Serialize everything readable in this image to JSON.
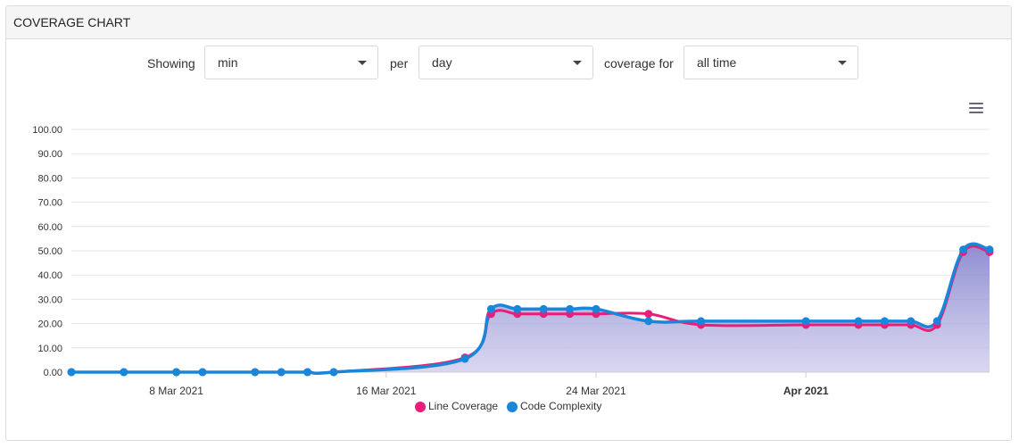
{
  "panel": {
    "title": "COVERAGE CHART"
  },
  "controls": {
    "showing_label": "Showing",
    "showing_value": "min",
    "per_label": "per",
    "per_value": "day",
    "coverage_label": "coverage for",
    "coverage_value": "all time"
  },
  "icons": {
    "menu": "hamburger-menu-icon",
    "dropdown": "caret-down-icon"
  },
  "chart_data": {
    "type": "area",
    "title": "",
    "xlabel": "",
    "ylabel": "",
    "ylim": [
      0,
      100
    ],
    "yticks": [
      "0.00",
      "10.00",
      "20.00",
      "30.00",
      "40.00",
      "50.00",
      "60.00",
      "70.00",
      "80.00",
      "90.00",
      "100.00"
    ],
    "xticks": [
      {
        "date": "2021-03-08",
        "label": "8 Mar 2021",
        "bold": false
      },
      {
        "date": "2021-03-16",
        "label": "16 Mar 2021",
        "bold": false
      },
      {
        "date": "2021-03-24",
        "label": "24 Mar 2021",
        "bold": false
      },
      {
        "date": "2021-04-01",
        "label": "Apr 2021",
        "bold": true
      }
    ],
    "xrange": [
      "2021-03-04",
      "2021-04-08"
    ],
    "grid": true,
    "legend_position": "bottom-center",
    "series": [
      {
        "name": "Line Coverage",
        "color": "#e91e78",
        "points": [
          [
            "2021-03-04",
            0
          ],
          [
            "2021-03-06",
            0
          ],
          [
            "2021-03-08",
            0
          ],
          [
            "2021-03-09",
            0
          ],
          [
            "2021-03-11",
            0
          ],
          [
            "2021-03-12",
            0
          ],
          [
            "2021-03-13",
            0
          ],
          [
            "2021-03-14",
            0
          ],
          [
            "2021-03-19",
            6
          ],
          [
            "2021-03-20",
            24
          ],
          [
            "2021-03-21",
            24
          ],
          [
            "2021-03-22",
            24
          ],
          [
            "2021-03-23",
            24
          ],
          [
            "2021-03-24",
            24
          ],
          [
            "2021-03-26",
            24
          ],
          [
            "2021-03-28",
            19.5
          ],
          [
            "2021-04-01",
            19.5
          ],
          [
            "2021-04-03",
            19.5
          ],
          [
            "2021-04-04",
            19.5
          ],
          [
            "2021-04-05",
            19.5
          ],
          [
            "2021-04-06",
            19.5
          ],
          [
            "2021-04-07",
            49.5
          ],
          [
            "2021-04-08",
            49.5
          ]
        ]
      },
      {
        "name": "Code Complexity",
        "color": "#1a86d9",
        "points": [
          [
            "2021-03-04",
            0
          ],
          [
            "2021-03-06",
            0
          ],
          [
            "2021-03-08",
            0
          ],
          [
            "2021-03-09",
            0
          ],
          [
            "2021-03-11",
            0
          ],
          [
            "2021-03-12",
            0
          ],
          [
            "2021-03-13",
            0
          ],
          [
            "2021-03-14",
            0
          ],
          [
            "2021-03-19",
            5.5
          ],
          [
            "2021-03-20",
            26
          ],
          [
            "2021-03-21",
            26
          ],
          [
            "2021-03-22",
            26
          ],
          [
            "2021-03-23",
            26
          ],
          [
            "2021-03-24",
            26
          ],
          [
            "2021-03-26",
            21
          ],
          [
            "2021-03-28",
            21
          ],
          [
            "2021-04-01",
            21
          ],
          [
            "2021-04-03",
            21
          ],
          [
            "2021-04-04",
            21
          ],
          [
            "2021-04-05",
            21
          ],
          [
            "2021-04-06",
            21
          ],
          [
            "2021-04-07",
            50.5
          ],
          [
            "2021-04-08",
            50.5
          ]
        ]
      }
    ]
  }
}
